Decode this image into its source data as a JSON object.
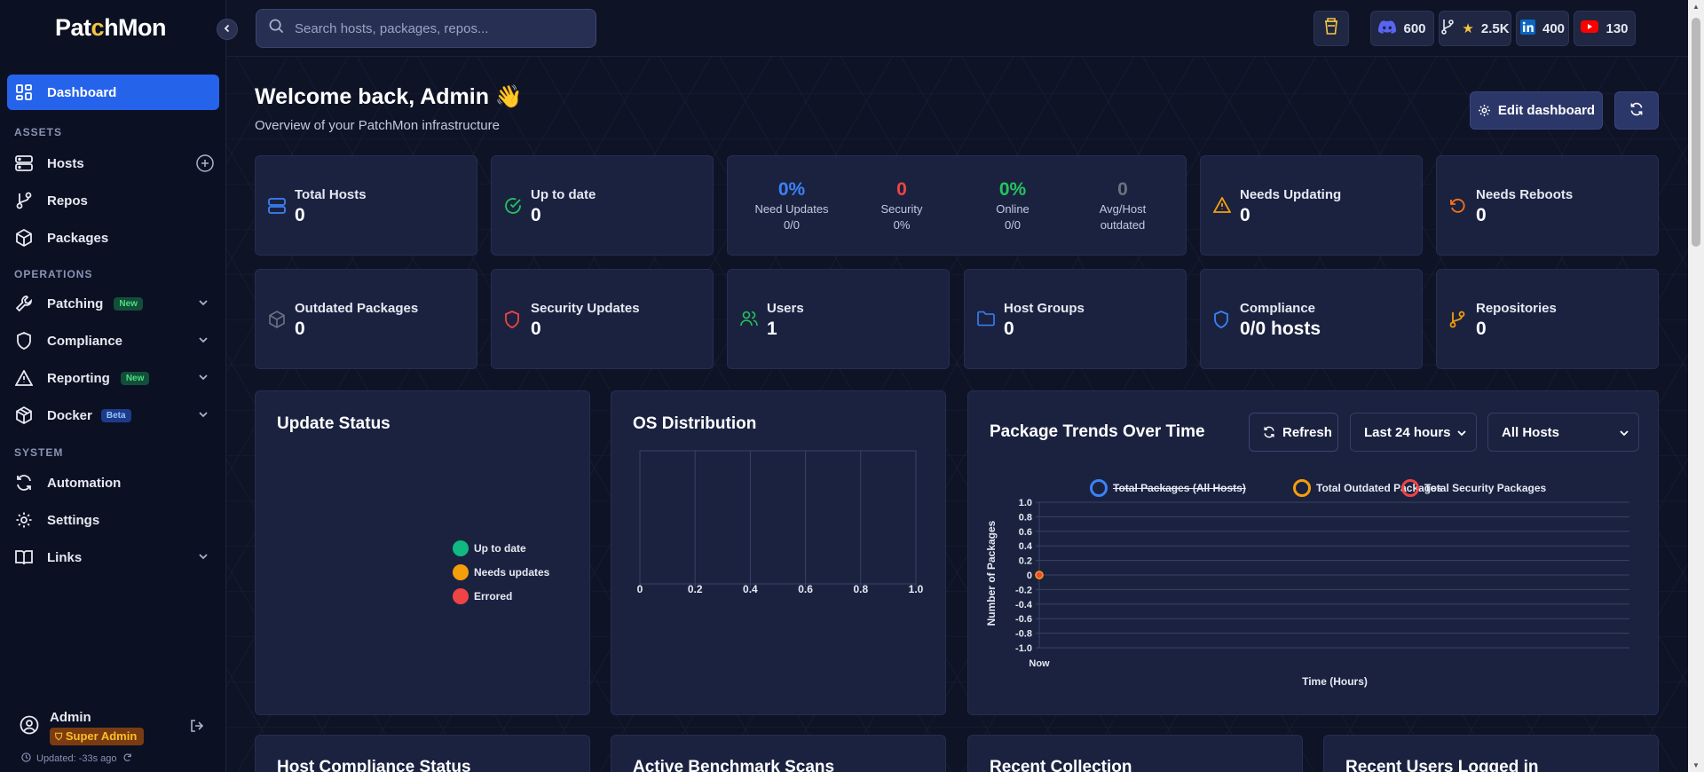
{
  "app": {
    "logo_pre": "Pat",
    "logo_c": "c",
    "logo_post": "hMon"
  },
  "search": {
    "placeholder": "Search hosts, packages, repos..."
  },
  "top_pills": [
    {
      "icon": "discord-icon",
      "value": "600"
    },
    {
      "icon": "github-star-icon",
      "value": "2.5K"
    },
    {
      "icon": "linkedin-icon",
      "value": "400"
    },
    {
      "icon": "youtube-icon",
      "value": "130"
    }
  ],
  "sidebar": {
    "dashboard": "Dashboard",
    "assets_label": "ASSETS",
    "hosts": "Hosts",
    "repos": "Repos",
    "packages": "Packages",
    "operations_label": "OPERATIONS",
    "patching": "Patching",
    "patching_badge": "New",
    "compliance": "Compliance",
    "reporting": "Reporting",
    "reporting_badge": "New",
    "docker": "Docker",
    "docker_badge": "Beta",
    "system_label": "SYSTEM",
    "automation": "Automation",
    "settings": "Settings",
    "links": "Links"
  },
  "user": {
    "name": "Admin",
    "role": "Super Admin",
    "updated": "Updated: -33s ago"
  },
  "header": {
    "welcome": "Welcome back, Admin",
    "emoji": "👋",
    "subtitle": "Overview of your PatchMon infrastructure",
    "edit_button": "Edit dashboard"
  },
  "stats_row1": {
    "total_hosts": {
      "title": "Total Hosts",
      "value": "0"
    },
    "up_to_date": {
      "title": "Up to date",
      "value": "0"
    },
    "summary": [
      {
        "value": "0%",
        "label": "Need Updates",
        "sub": "0/0",
        "color": "#3b82f6"
      },
      {
        "value": "0",
        "label": "Security",
        "sub": "0%",
        "color": "#ef4444"
      },
      {
        "value": "0%",
        "label": "Online",
        "sub": "0/0",
        "color": "#22c55e"
      },
      {
        "value": "0",
        "label": "Avg/Host",
        "sub": "outdated",
        "color": "#6b7280"
      }
    ],
    "needs_updating": {
      "title": "Needs Updating",
      "value": "0"
    },
    "needs_reboots": {
      "title": "Needs Reboots",
      "value": "0"
    }
  },
  "stats_row2": {
    "outdated_packages": {
      "title": "Outdated Packages",
      "value": "0"
    },
    "security_updates": {
      "title": "Security Updates",
      "value": "0"
    },
    "users": {
      "title": "Users",
      "value": "1"
    },
    "host_groups": {
      "title": "Host Groups",
      "value": "0"
    },
    "compliance": {
      "title": "Compliance",
      "value": "0/0 hosts"
    },
    "repositories": {
      "title": "Repositories",
      "value": "0"
    }
  },
  "update_status": {
    "title": "Update Status",
    "legend": [
      {
        "label": "Up to date",
        "color": "#10b981"
      },
      {
        "label": "Needs updates",
        "color": "#f59e0b"
      },
      {
        "label": "Errored",
        "color": "#ef4444"
      }
    ]
  },
  "os_distribution": {
    "title": "OS Distribution",
    "ticks": [
      "0",
      "0.2",
      "0.4",
      "0.6",
      "0.8",
      "1.0"
    ]
  },
  "package_trends": {
    "title": "Package Trends Over Time",
    "refresh": "Refresh",
    "range": "Last 24 hours",
    "hosts": "All Hosts",
    "ylabel": "Number of Packages",
    "xlabel": "Time (Hours)"
  },
  "bottom_panels": [
    "Host Compliance Status",
    "Active Benchmark Scans",
    "Recent Collection",
    "Recent Users Logged in"
  ],
  "chart_data": [
    {
      "type": "line",
      "title": "Package Trends Over Time",
      "xlabel": "Time (Hours)",
      "ylabel": "Number of Packages",
      "categories": [
        "Now"
      ],
      "ylim": [
        -1.0,
        1.0
      ],
      "yticks": [
        "1.0",
        "0.8",
        "0.6",
        "0.4",
        "0.2",
        "0",
        "-0.2",
        "-0.4",
        "-0.6",
        "-0.8",
        "-1.0"
      ],
      "series": [
        {
          "name": "Total Packages (All Hosts)",
          "values": [
            0
          ],
          "color": "#3b82f6",
          "hidden": true
        },
        {
          "name": "Total Outdated Packages",
          "values": [
            0
          ],
          "color": "#f59e0b"
        },
        {
          "name": "Total Security Packages",
          "values": [
            0
          ],
          "color": "#ef4444"
        }
      ]
    }
  ]
}
